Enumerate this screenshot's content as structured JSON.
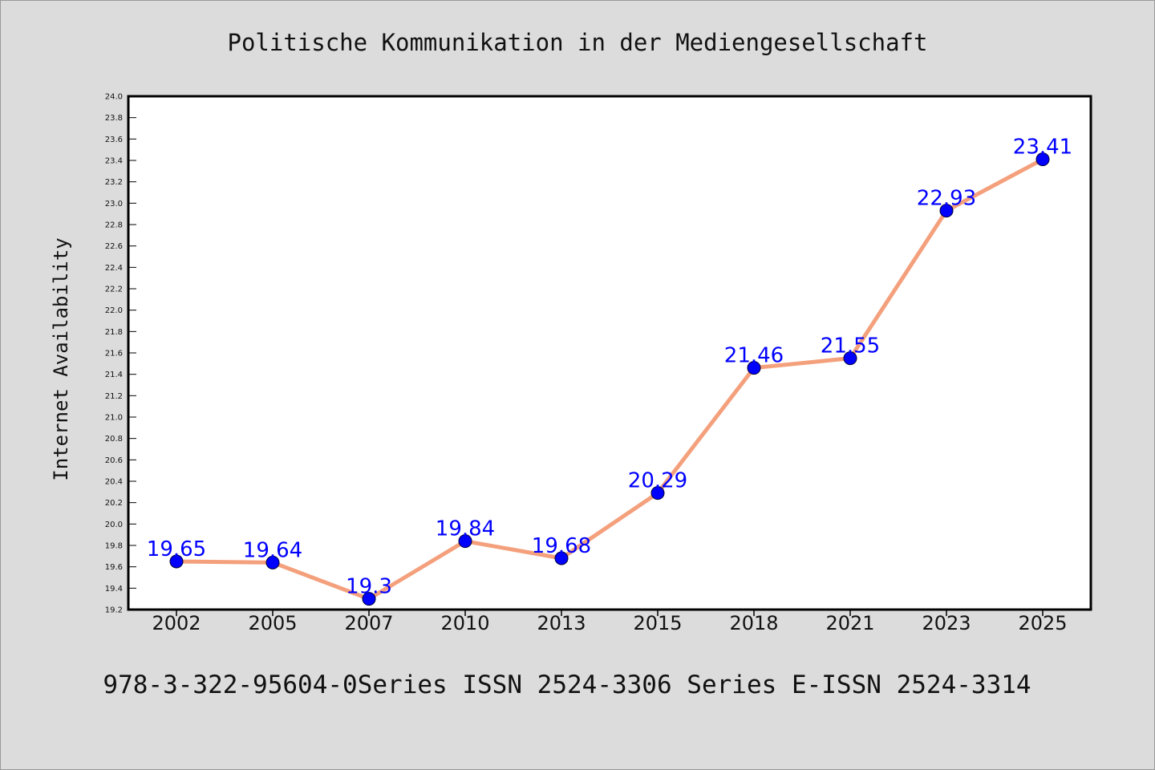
{
  "colors": {
    "background": "#dcdcdc",
    "plot_background": "#ffffff",
    "line": "#f4a07c",
    "marker": "#0000ff",
    "data_label": "#0000ff",
    "axis": "#000000"
  },
  "footer_text": "978-3-322-95604-0Series ISSN 2524-3306 Series E-ISSN 2524-3314",
  "chart_data": {
    "type": "line",
    "title": "Politische Kommunikation in der Mediengesellschaft",
    "xlabel": "",
    "ylabel": "Internet Availability",
    "categories": [
      "2002",
      "2005",
      "2007",
      "2010",
      "2013",
      "2015",
      "2018",
      "2021",
      "2023",
      "2025"
    ],
    "values": [
      19.65,
      19.64,
      19.3,
      19.84,
      19.68,
      20.29,
      21.46,
      21.55,
      22.93,
      23.41
    ],
    "data_labels": [
      "19.65",
      "19.64",
      "19.3",
      "19.84",
      "19.68",
      "20.29",
      "21.46",
      "21.55",
      "22.93",
      "23.41"
    ],
    "ylim": [
      19.2,
      24.0
    ],
    "yticks": [
      "19.2",
      "19.4",
      "19.6",
      "19.8",
      "20.0",
      "20.2",
      "20.4",
      "20.6",
      "20.8",
      "21.0",
      "21.2",
      "21.4",
      "21.6",
      "21.8",
      "22.0",
      "22.2",
      "22.4",
      "22.6",
      "22.8",
      "23.0",
      "23.2",
      "23.4",
      "23.6",
      "23.8",
      "24.0"
    ],
    "grid": false,
    "legend": "none",
    "markers": true
  }
}
